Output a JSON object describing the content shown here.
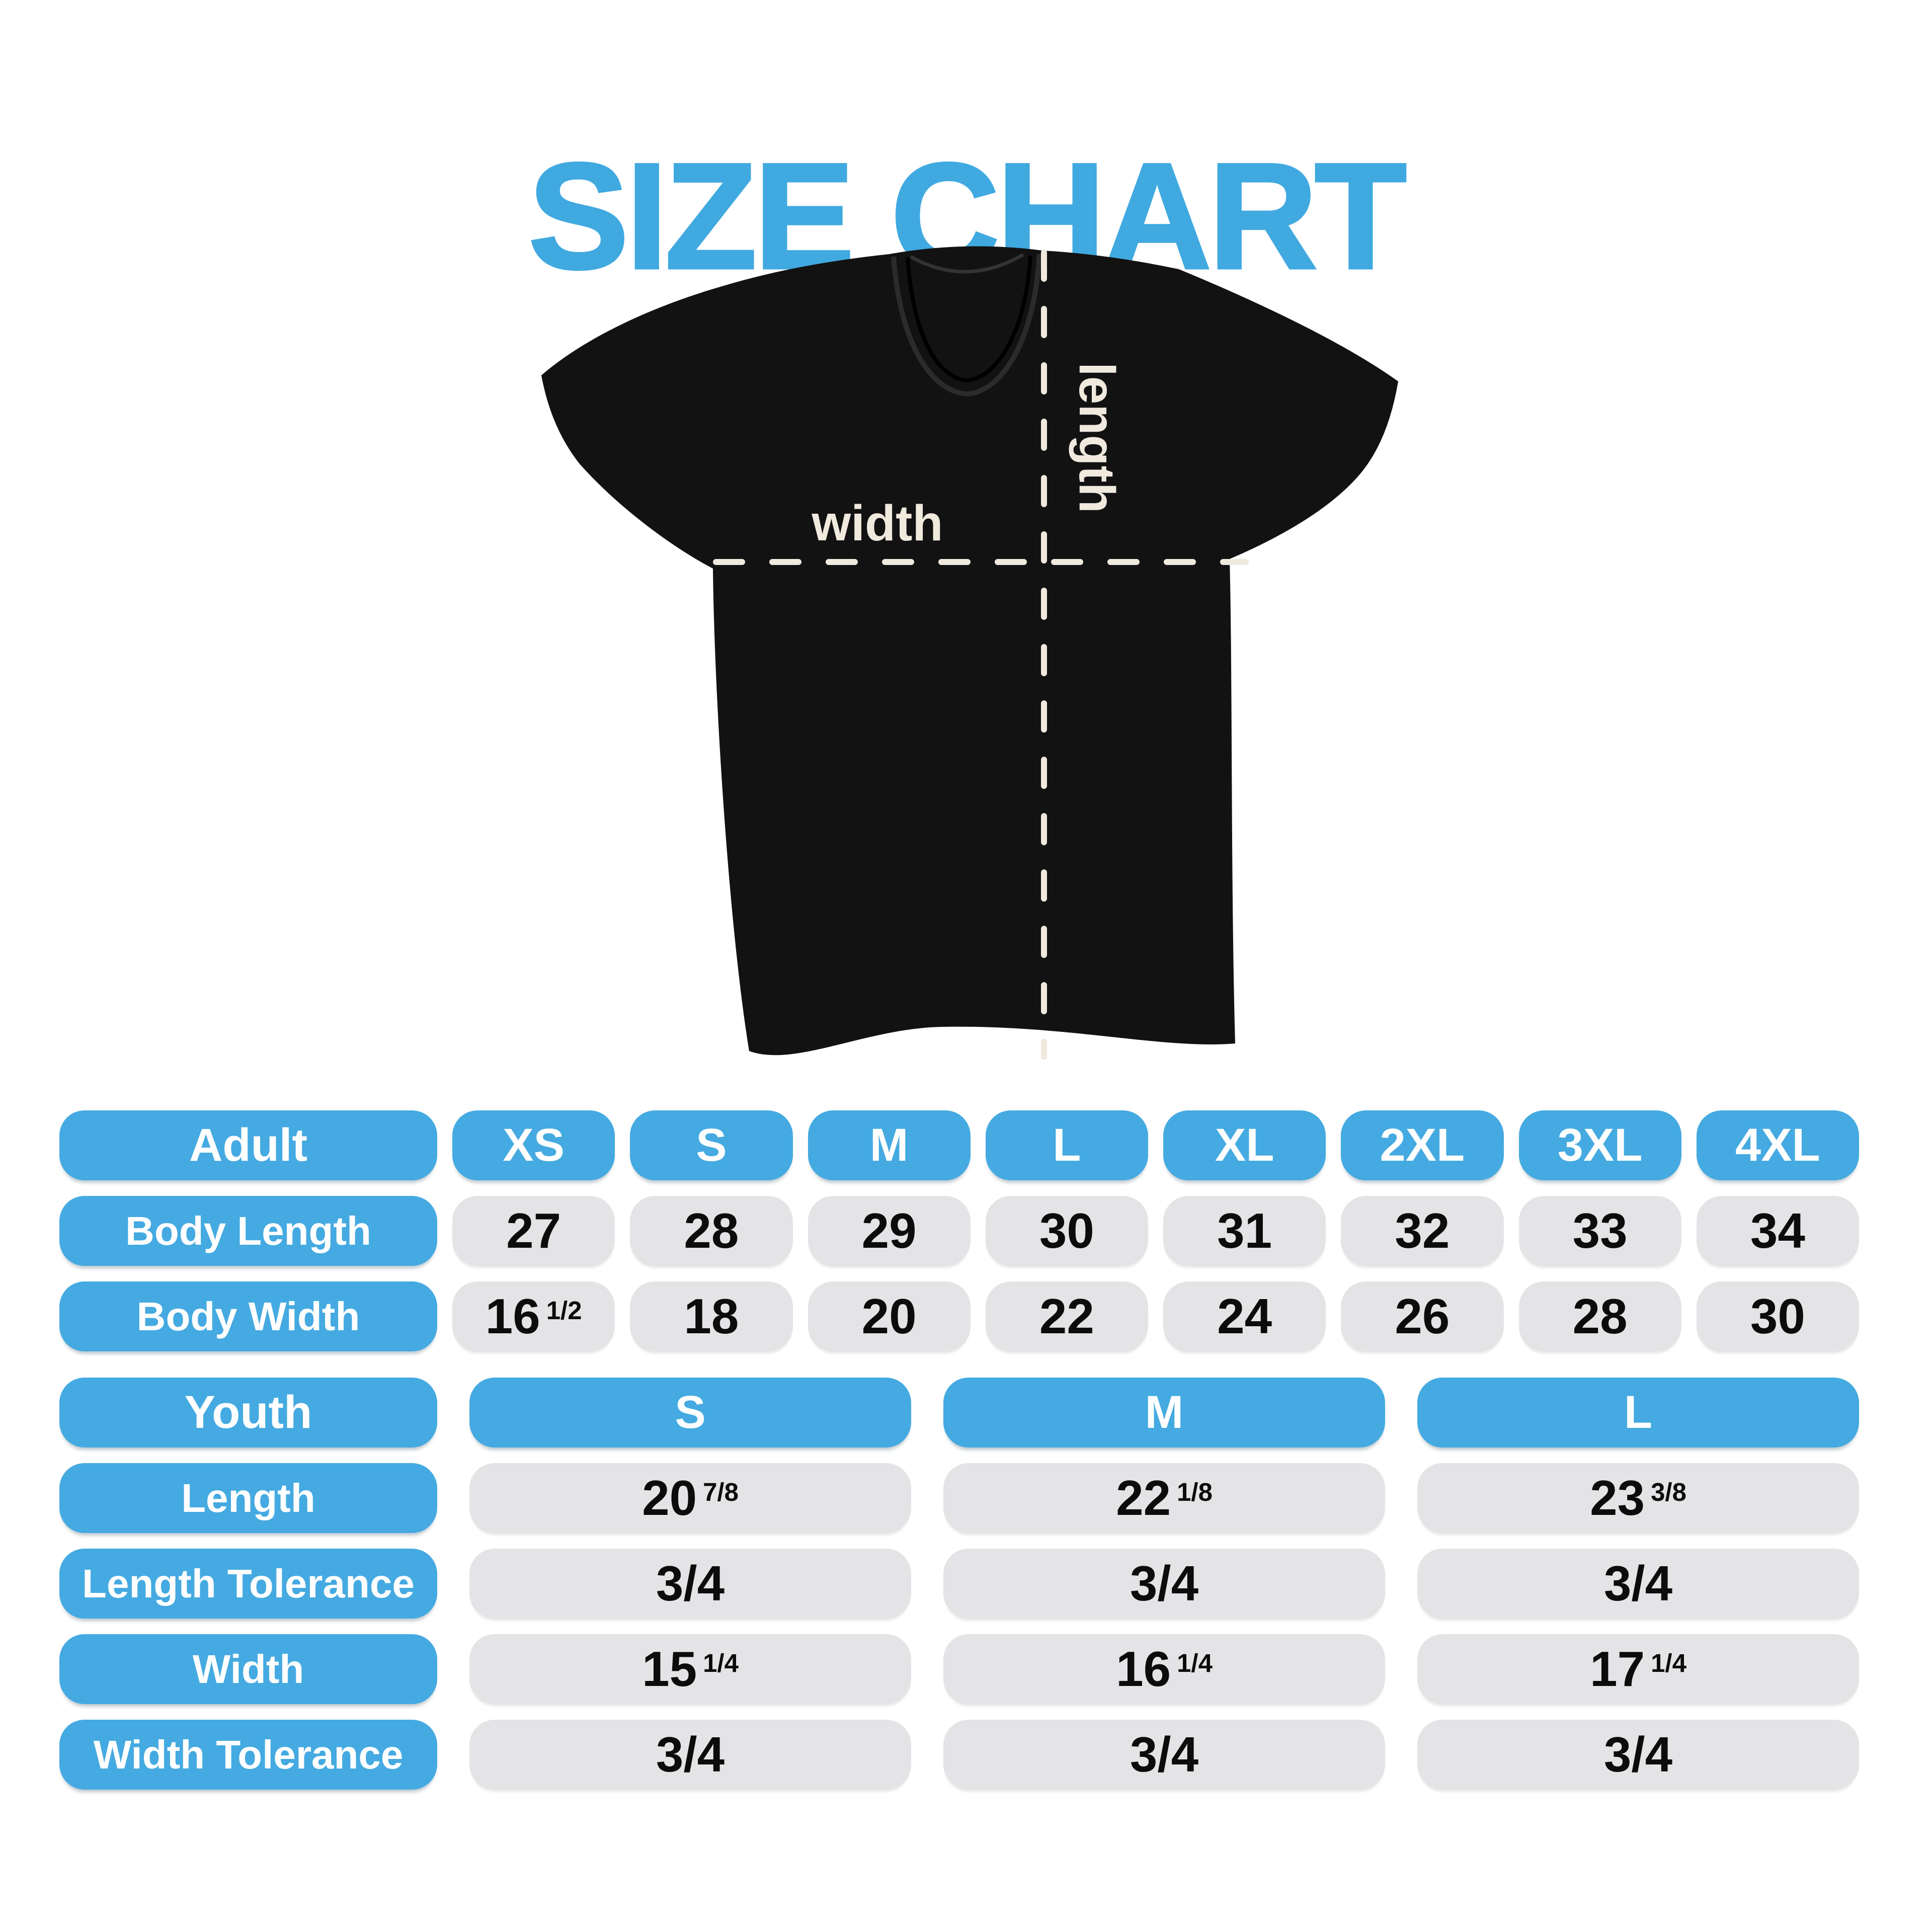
{
  "title": "SIZE CHART",
  "diagram": {
    "width_label": "width",
    "length_label": "length"
  },
  "adult_table": {
    "header_label": "Adult",
    "sizes": [
      "XS",
      "S",
      "M",
      "L",
      "XL",
      "2XL",
      "3XL",
      "4XL"
    ],
    "rows": [
      {
        "label": "Body Length",
        "values": [
          {
            "main": "27"
          },
          {
            "main": "28"
          },
          {
            "main": "29"
          },
          {
            "main": "30"
          },
          {
            "main": "31"
          },
          {
            "main": "32"
          },
          {
            "main": "33"
          },
          {
            "main": "34"
          }
        ]
      },
      {
        "label": "Body Width",
        "values": [
          {
            "main": "16",
            "frac": "1/2"
          },
          {
            "main": "18"
          },
          {
            "main": "20"
          },
          {
            "main": "22"
          },
          {
            "main": "24"
          },
          {
            "main": "26"
          },
          {
            "main": "28"
          },
          {
            "main": "30"
          }
        ]
      }
    ]
  },
  "youth_table": {
    "header_label": "Youth",
    "sizes": [
      "S",
      "M",
      "L"
    ],
    "rows": [
      {
        "label": "Length",
        "values": [
          {
            "main": "20",
            "frac": "7/8"
          },
          {
            "main": "22",
            "frac": "1/8"
          },
          {
            "main": "23",
            "frac": "3/8"
          }
        ]
      },
      {
        "label": "Length Tolerance",
        "values": [
          {
            "main": "3/4"
          },
          {
            "main": "3/4"
          },
          {
            "main": "3/4"
          }
        ]
      },
      {
        "label": "Width",
        "values": [
          {
            "main": "15",
            "frac": "1/4"
          },
          {
            "main": "16",
            "frac": "1/4"
          },
          {
            "main": "17",
            "frac": "1/4"
          }
        ]
      },
      {
        "label": "Width Tolerance",
        "values": [
          {
            "main": "3/4"
          },
          {
            "main": "3/4"
          },
          {
            "main": "3/4"
          }
        ]
      }
    ]
  },
  "colors": {
    "accent": "#45AAE1",
    "title": "#40A9E0",
    "cell": "#E4E4E6",
    "value_text": "#0C0C0C",
    "shirt": "#121212",
    "dash": "#EFE9DE",
    "background": "#FFFFFF"
  }
}
